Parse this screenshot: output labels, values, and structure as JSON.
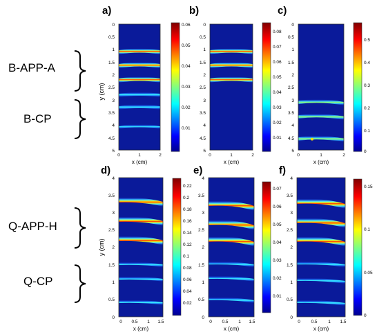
{
  "figure": {
    "group_labels": {
      "b_app_a": "B-APP-A",
      "b_cp": "B-CP",
      "q_app_h": "Q-APP-H",
      "q_cp": "Q-CP"
    },
    "panels": [
      {
        "id": "a",
        "letter": "a)",
        "xlabel": "x (cm)",
        "ylabel": "y (cm)",
        "xticks": [
          "0",
          "1",
          "2"
        ],
        "yticks": [
          "0",
          "0.5",
          "1",
          "1.5",
          "2",
          "2.5",
          "3",
          "3.5",
          "4",
          "4.5",
          "5"
        ],
        "colorbar_ticks": [
          "0.06",
          "0.05",
          "0.04",
          "0.03",
          "0.02",
          "0.01"
        ]
      },
      {
        "id": "b",
        "letter": "b)",
        "xlabel": "x (cm)",
        "ylabel": "",
        "xticks": [
          "0",
          "1",
          "2"
        ],
        "yticks": [
          "0",
          "0.5",
          "1",
          "1.5",
          "2",
          "2.5",
          "3",
          "3.5",
          "4",
          "4.5",
          "5"
        ],
        "colorbar_ticks": [
          "0.08",
          "0.07",
          "0.06",
          "0.05",
          "0.04",
          "0.03",
          "0.02",
          "0.01"
        ]
      },
      {
        "id": "c",
        "letter": "c)",
        "xlabel": "x (cm)",
        "ylabel": "",
        "xticks": [
          "0",
          "1",
          "2"
        ],
        "yticks": [
          "0",
          "0.5",
          "1",
          "1.5",
          "2",
          "2.5",
          "3",
          "3.5",
          "4",
          "4.5",
          "5"
        ],
        "colorbar_ticks": [
          "0.5",
          "0.4",
          "0.3",
          "0.2",
          "0.1",
          "0"
        ]
      },
      {
        "id": "d",
        "letter": "d)",
        "xlabel": "x (cm)",
        "ylabel": "y (cm)",
        "xticks": [
          "0",
          "0.5",
          "1",
          "1.5"
        ],
        "yticks": [
          "4",
          "3.5",
          "3",
          "2.5",
          "2",
          "1.5",
          "1",
          "0.5",
          "0"
        ],
        "colorbar_ticks": [
          "0.22",
          "0.2",
          "0.18",
          "0.16",
          "0.14",
          "0.12",
          "0.1",
          "0.08",
          "0.06",
          "0.04",
          "0.02"
        ]
      },
      {
        "id": "e",
        "letter": "e)",
        "xlabel": "x (cm)",
        "ylabel": "",
        "xticks": [
          "0",
          "0.5",
          "1",
          "1.5"
        ],
        "yticks": [
          "4",
          "3.5",
          "3",
          "2.5",
          "2",
          "1.5",
          "1",
          "0.5",
          "0"
        ],
        "colorbar_ticks": [
          "0.07",
          "0.06",
          "0.05",
          "0.04",
          "0.03",
          "0.02",
          "0.01"
        ]
      },
      {
        "id": "f",
        "letter": "f)",
        "xlabel": "x (cm)",
        "ylabel": "",
        "xticks": [
          "0",
          "0.5",
          "1",
          "1.5"
        ],
        "yticks": [
          "4",
          "3.5",
          "3",
          "2.5",
          "2",
          "1.5",
          "1",
          "0.5",
          "0"
        ],
        "colorbar_ticks": [
          "0.15",
          "0.1",
          "0.05",
          "0"
        ]
      }
    ],
    "colormap": [
      "#00008f",
      "#0000ff",
      "#0080ff",
      "#00ffff",
      "#80ff80",
      "#ffff00",
      "#ff8000",
      "#ff0000",
      "#800000"
    ],
    "background_color": "#0a1a9a"
  }
}
